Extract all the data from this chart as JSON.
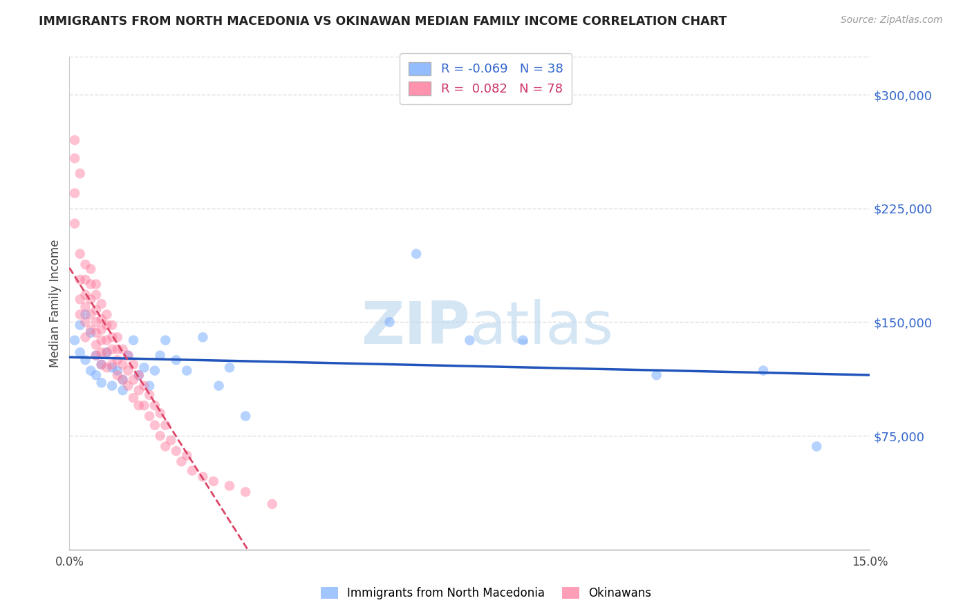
{
  "title": "IMMIGRANTS FROM NORTH MACEDONIA VS OKINAWAN MEDIAN FAMILY INCOME CORRELATION CHART",
  "source": "Source: ZipAtlas.com",
  "ylabel": "Median Family Income",
  "yticks": [
    0,
    75000,
    150000,
    225000,
    300000
  ],
  "ytick_labels": [
    "",
    "$75,000",
    "$150,000",
    "$225,000",
    "$300,000"
  ],
  "xlim": [
    0.0,
    0.15
  ],
  "ylim": [
    0,
    325000
  ],
  "legend1_R": "-0.069",
  "legend1_N": "38",
  "legend2_R": "0.082",
  "legend2_N": "78",
  "blue_color": "#7aadff",
  "pink_color": "#ff7799",
  "blue_line_color": "#2255bb",
  "pink_line_color": "#dd4466",
  "watermark": "ZIPatlas",
  "blue_points_x": [
    0.001,
    0.002,
    0.002,
    0.003,
    0.003,
    0.004,
    0.004,
    0.005,
    0.005,
    0.006,
    0.006,
    0.007,
    0.008,
    0.008,
    0.009,
    0.01,
    0.01,
    0.011,
    0.012,
    0.013,
    0.014,
    0.015,
    0.016,
    0.017,
    0.018,
    0.02,
    0.022,
    0.025,
    0.028,
    0.03,
    0.033,
    0.06,
    0.065,
    0.075,
    0.085,
    0.11,
    0.13,
    0.14
  ],
  "blue_points_y": [
    138000,
    148000,
    130000,
    155000,
    125000,
    143000,
    118000,
    128000,
    115000,
    122000,
    110000,
    130000,
    120000,
    108000,
    118000,
    112000,
    105000,
    128000,
    138000,
    115000,
    120000,
    108000,
    118000,
    128000,
    138000,
    125000,
    118000,
    140000,
    108000,
    120000,
    88000,
    150000,
    195000,
    138000,
    138000,
    115000,
    118000,
    68000
  ],
  "pink_points_x": [
    0.001,
    0.001,
    0.001,
    0.001,
    0.002,
    0.002,
    0.002,
    0.002,
    0.002,
    0.003,
    0.003,
    0.003,
    0.003,
    0.003,
    0.003,
    0.004,
    0.004,
    0.004,
    0.004,
    0.004,
    0.005,
    0.005,
    0.005,
    0.005,
    0.005,
    0.005,
    0.005,
    0.006,
    0.006,
    0.006,
    0.006,
    0.006,
    0.006,
    0.007,
    0.007,
    0.007,
    0.007,
    0.007,
    0.008,
    0.008,
    0.008,
    0.008,
    0.009,
    0.009,
    0.009,
    0.009,
    0.01,
    0.01,
    0.01,
    0.011,
    0.011,
    0.011,
    0.012,
    0.012,
    0.012,
    0.013,
    0.013,
    0.013,
    0.014,
    0.014,
    0.015,
    0.015,
    0.016,
    0.016,
    0.017,
    0.017,
    0.018,
    0.018,
    0.019,
    0.02,
    0.021,
    0.022,
    0.023,
    0.025,
    0.027,
    0.03,
    0.033,
    0.038
  ],
  "pink_points_y": [
    270000,
    258000,
    235000,
    215000,
    248000,
    195000,
    178000,
    165000,
    155000,
    188000,
    178000,
    168000,
    160000,
    150000,
    140000,
    185000,
    175000,
    165000,
    155000,
    145000,
    175000,
    168000,
    158000,
    150000,
    143000,
    135000,
    128000,
    162000,
    152000,
    145000,
    138000,
    130000,
    122000,
    155000,
    148000,
    138000,
    130000,
    120000,
    148000,
    140000,
    132000,
    122000,
    140000,
    132000,
    125000,
    115000,
    132000,
    122000,
    112000,
    128000,
    118000,
    108000,
    122000,
    112000,
    100000,
    115000,
    105000,
    95000,
    108000,
    95000,
    102000,
    88000,
    95000,
    82000,
    90000,
    75000,
    82000,
    68000,
    72000,
    65000,
    58000,
    62000,
    52000,
    48000,
    45000,
    42000,
    38000,
    30000
  ]
}
